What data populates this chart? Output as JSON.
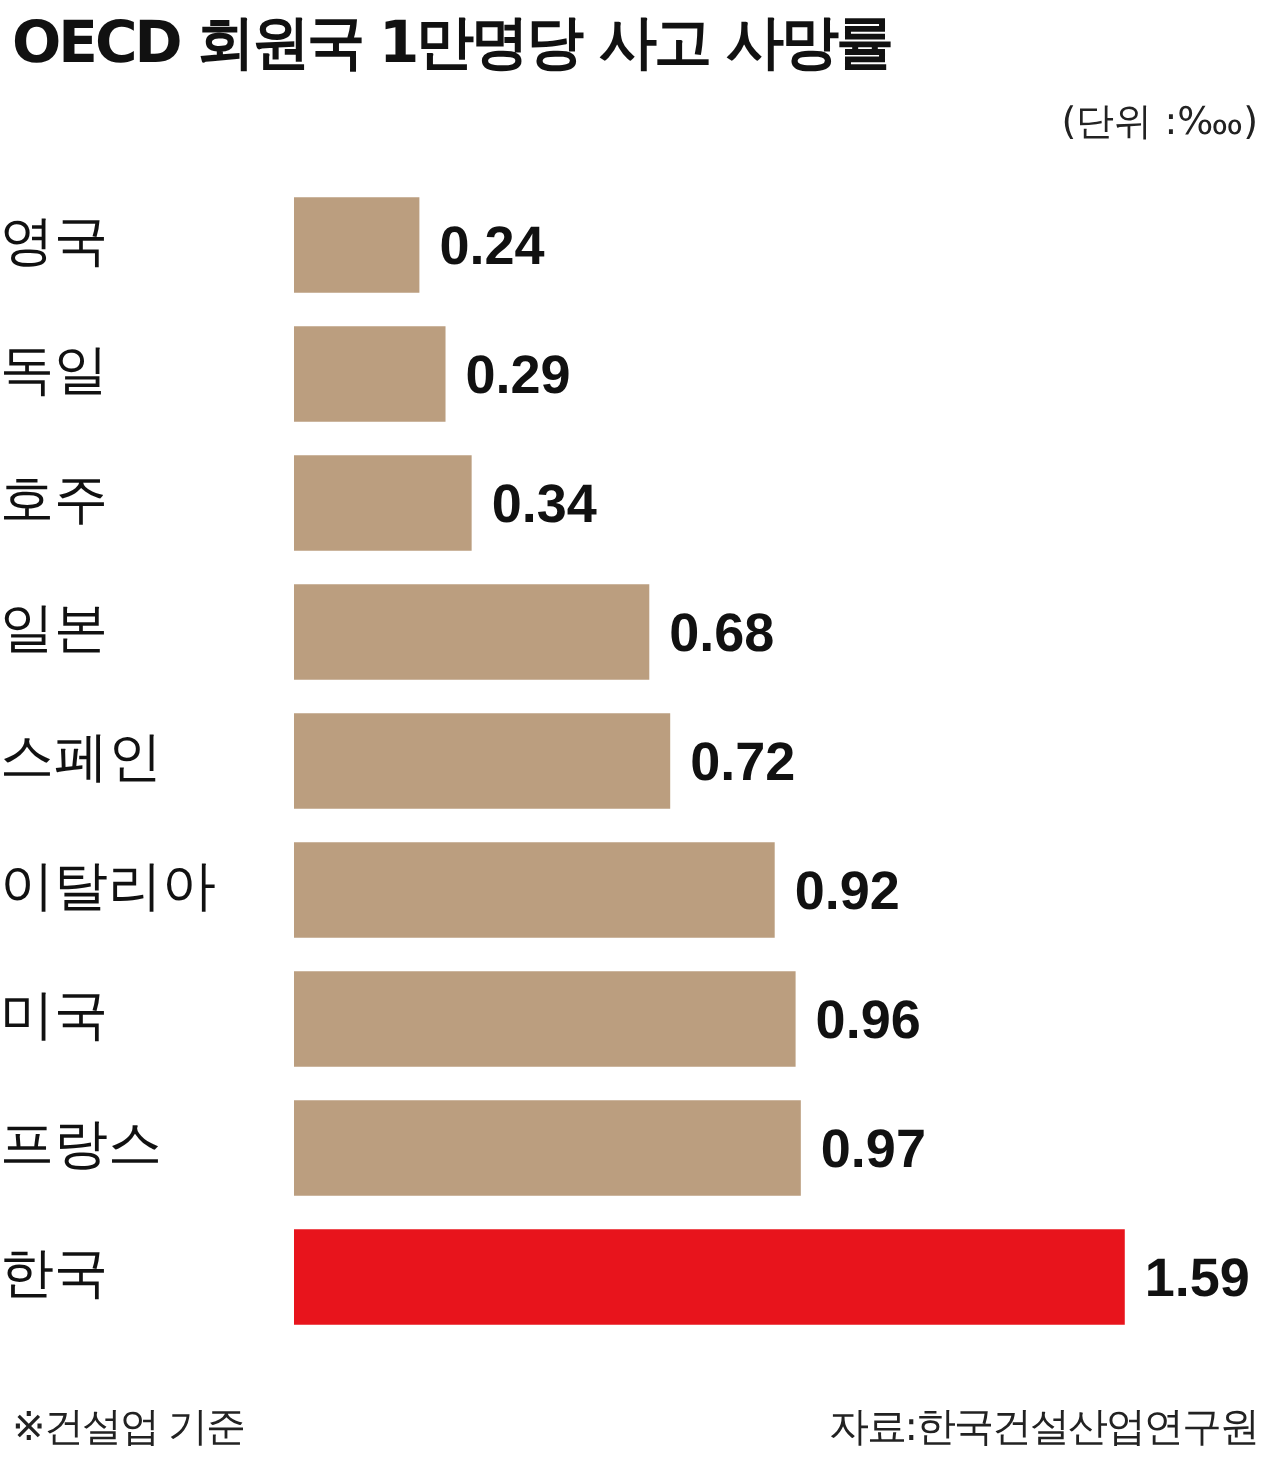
{
  "chart_data": {
    "type": "bar",
    "orientation": "horizontal",
    "title": "OECD 회원국 1만명당 사고 사망률",
    "subtitle": "(단위 :‱)",
    "categories": [
      "영국",
      "독일",
      "호주",
      "일본",
      "스페인",
      "이탈리아",
      "미국",
      "프랑스",
      "한국"
    ],
    "values": [
      0.24,
      0.29,
      0.34,
      0.68,
      0.72,
      0.92,
      0.96,
      0.97,
      1.59
    ],
    "colors": [
      "#bb9e7f",
      "#bb9e7f",
      "#bb9e7f",
      "#bb9e7f",
      "#bb9e7f",
      "#bb9e7f",
      "#bb9e7f",
      "#bb9e7f",
      "#e8141c"
    ],
    "data_labels": true,
    "grid": false,
    "legend": false,
    "tick_labels": "y",
    "annotations": [
      "※건설업 기준",
      "자료:한국건설산업연구원"
    ]
  }
}
